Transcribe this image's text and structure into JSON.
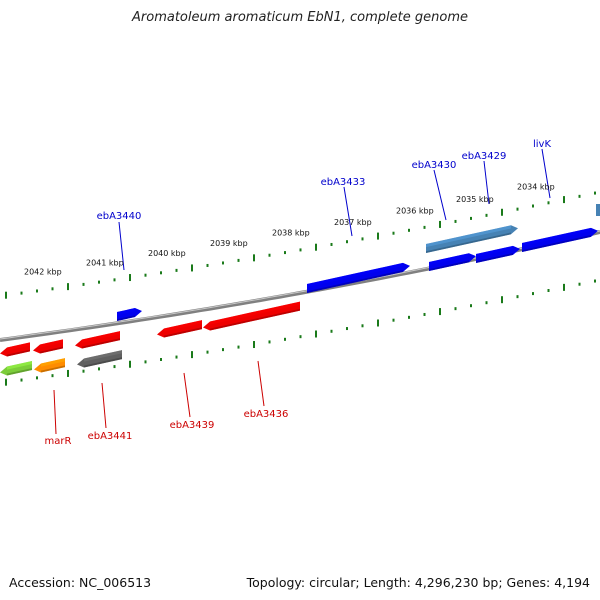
{
  "title": "Aromatoleum aromaticum EbN1, complete genome",
  "footer": {
    "accession": "Accession: NC_006513",
    "summary": "Topology: circular; Length: 4,296,230 bp; Genes: 4,194"
  },
  "colors": {
    "backbone": "#808080",
    "ticks": "#1a7a1a",
    "forward_label": "#0000cc",
    "reverse_label": "#cc0000",
    "gene_blue": "#0000ee",
    "gene_steel": "#4682b4",
    "gene_red": "#ee0000",
    "gene_gray": "#606060",
    "gene_orange": "#ff8c00",
    "gene_lime": "#7ccd3a"
  },
  "scale_labels": [
    "2042 kbp",
    "2041 kbp",
    "2040 kbp",
    "2039 kbp",
    "2038 kbp",
    "2037 kbp",
    "2036 kbp",
    "2035 kbp",
    "2034 kbp"
  ],
  "forward_genes": [
    {
      "label": "ebA3440",
      "color": "blue"
    },
    {
      "label": "",
      "color": "blue"
    },
    {
      "label": "ebA3433",
      "color": "blue"
    },
    {
      "label": "ebA3430",
      "color": "steel"
    },
    {
      "label": "",
      "color": "blue"
    },
    {
      "label": "ebA3429",
      "color": "blue"
    },
    {
      "label": "livK",
      "color": "blue"
    },
    {
      "label": "",
      "color": "blue"
    },
    {
      "label": "",
      "color": "steel"
    }
  ],
  "reverse_genes": [
    {
      "label": "",
      "color": "red"
    },
    {
      "label": "",
      "color": "red"
    },
    {
      "label": "ebA3441",
      "color": "red"
    },
    {
      "label": "ebA3439",
      "color": "red"
    },
    {
      "label": "ebA3436",
      "color": "red"
    },
    {
      "label": "",
      "color": "lime"
    },
    {
      "label": "marR",
      "color": "orange"
    },
    {
      "label": "",
      "color": "gray"
    }
  ]
}
